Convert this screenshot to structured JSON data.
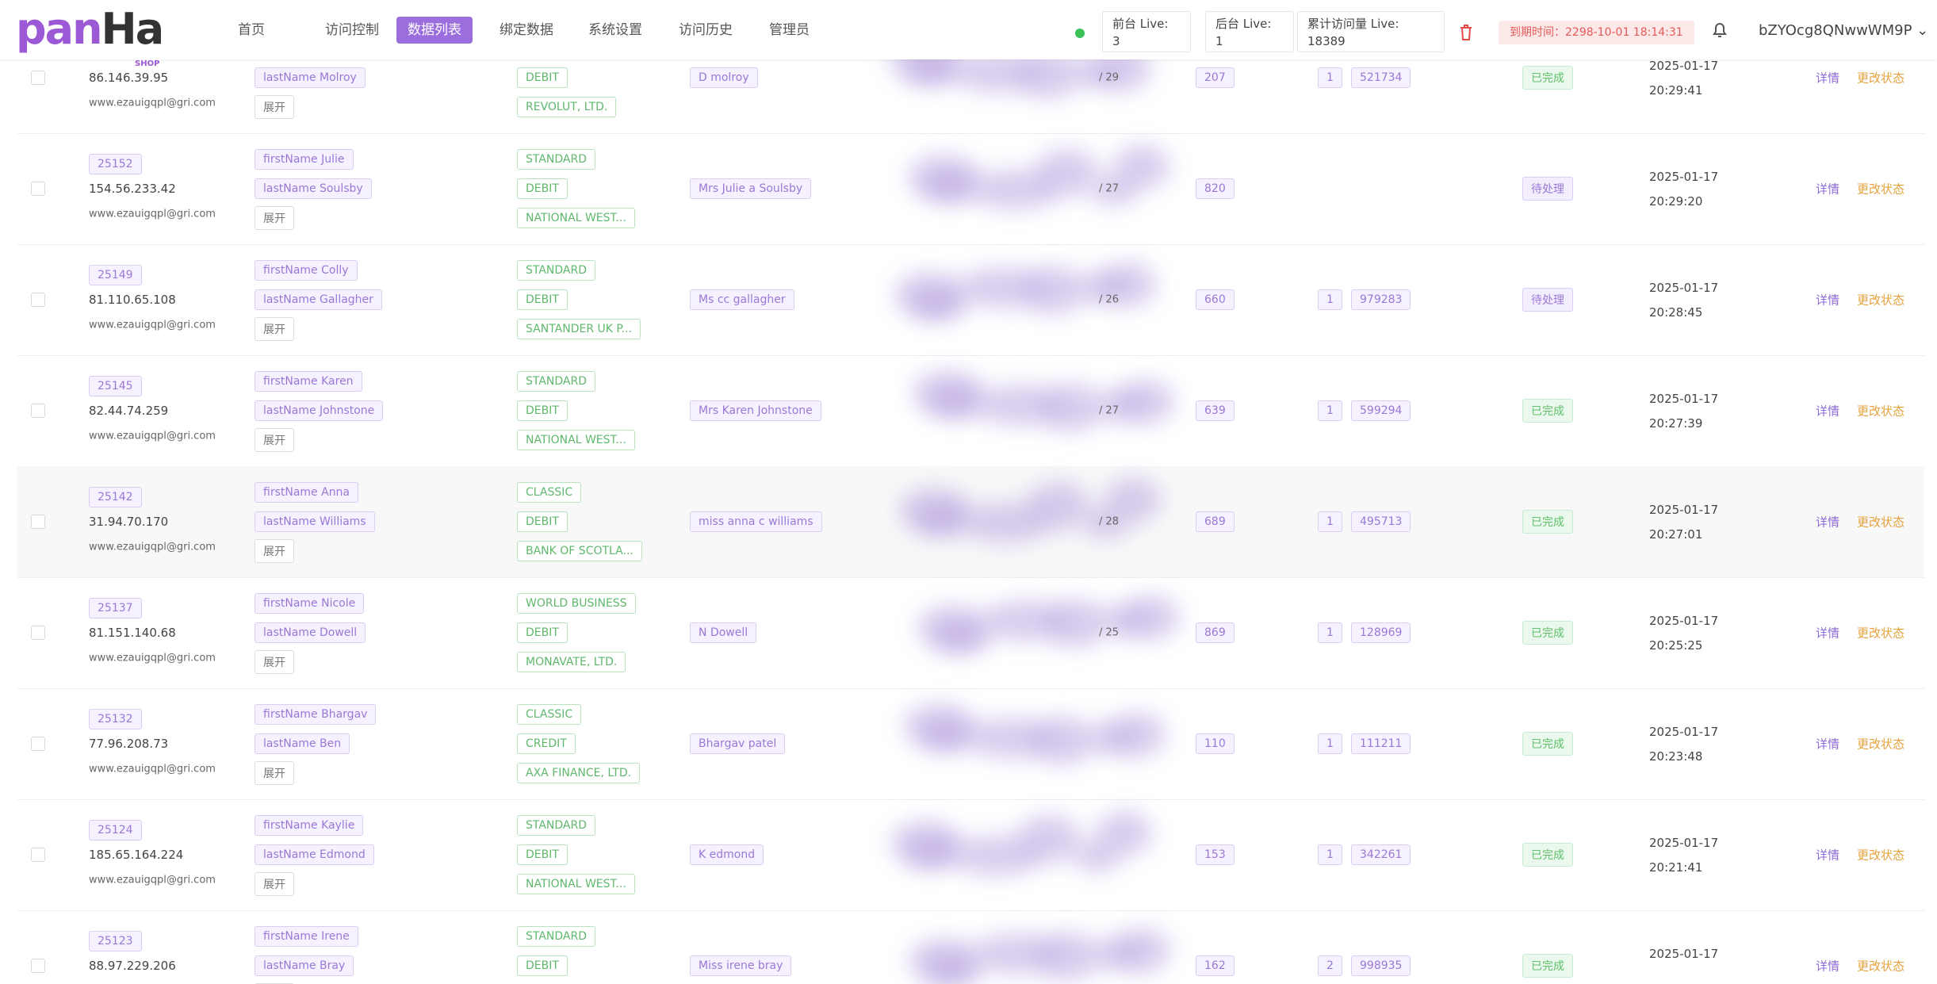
{
  "header": {
    "logo": {
      "main": "pan",
      "accent": "Ha",
      "sub": "SHOP"
    },
    "nav": [
      "首页",
      "访问控制",
      "数据列表",
      "绑定数据",
      "系统设置",
      "访问历史",
      "管理员"
    ],
    "active_nav": 2,
    "stats": [
      {
        "label": "前台 Live:",
        "value": "3"
      },
      {
        "label": "后台 Live:",
        "value": "1"
      },
      {
        "label": "累计访问量 Live:",
        "value": "18389"
      }
    ],
    "expiry": "到期时间：2298-10-01 18:14:31",
    "user": "bZYOcg8QNwwWM9P"
  },
  "table": {
    "labels": {
      "expand": "展开",
      "detail": "详情",
      "change": "更改状态"
    },
    "rows": [
      {
        "ip": "86.146.39.95",
        "email": "www.ezauigqpl@gri.com",
        "last": "lastName Molroy",
        "card_type": "DEBIT",
        "bank": "REVOLUT, LTD.",
        "holder": "D molroy",
        "frac": "/ 29",
        "score": "207",
        "count": "1",
        "code": "521734",
        "status": "已完成",
        "date": "2025-01-17",
        "time": "20:29:41"
      },
      {
        "id": "25152",
        "ip": "154.56.233.42",
        "email": "www.ezauigqpl@gri.com",
        "first": "firstName Julie",
        "last": "lastName Soulsby",
        "level": "STANDARD",
        "card_type": "DEBIT",
        "bank": "NATIONAL WEST...",
        "holder": "Mrs Julie a Soulsby",
        "frac": "/ 27",
        "score": "820",
        "status": "待处理",
        "date": "2025-01-17",
        "time": "20:29:20"
      },
      {
        "id": "25149",
        "ip": "81.110.65.108",
        "email": "www.ezauigqpl@gri.com",
        "first": "firstName Colly",
        "last": "lastName Gallagher",
        "level": "STANDARD",
        "card_type": "DEBIT",
        "bank": "SANTANDER UK P...",
        "holder": "Ms cc gallagher",
        "frac": "/ 26",
        "score": "660",
        "count": "1",
        "code": "979283",
        "status": "待处理",
        "date": "2025-01-17",
        "time": "20:28:45"
      },
      {
        "id": "25145",
        "ip": "82.44.74.259",
        "email": "www.ezauigqpl@gri.com",
        "first": "firstName Karen",
        "last": "lastName Johnstone",
        "level": "STANDARD",
        "card_type": "DEBIT",
        "bank": "NATIONAL WEST...",
        "holder": "Mrs Karen Johnstone",
        "frac": "/ 27",
        "score": "639",
        "count": "1",
        "code": "599294",
        "status": "已完成",
        "date": "2025-01-17",
        "time": "20:27:39"
      },
      {
        "id": "25142",
        "ip": "31.94.70.170",
        "email": "www.ezauigqpl@gri.com",
        "first": "firstName Anna",
        "last": "lastName Williams",
        "level": "CLASSIC",
        "card_type": "DEBIT",
        "bank": "BANK OF SCOTLA...",
        "holder": "miss anna c williams",
        "frac": "/ 28",
        "score": "689",
        "count": "1",
        "code": "495713",
        "status": "已完成",
        "date": "2025-01-17",
        "time": "20:27:01"
      },
      {
        "id": "25137",
        "ip": "81.151.140.68",
        "email": "www.ezauigqpl@gri.com",
        "first": "firstName Nicole",
        "last": "lastName Dowell",
        "level": "WORLD BUSINESS",
        "card_type": "DEBIT",
        "bank": "MONAVATE, LTD.",
        "holder": "N Dowell",
        "frac": "/ 25",
        "score": "869",
        "count": "1",
        "code": "128969",
        "status": "已完成",
        "date": "2025-01-17",
        "time": "20:25:25"
      },
      {
        "id": "25132",
        "ip": "77.96.208.73",
        "email": "www.ezauigqpl@gri.com",
        "first": "firstName Bhargav",
        "last": "lastName Ben",
        "level": "CLASSIC",
        "card_type": "CREDIT",
        "bank": "AXA FINANCE, LTD.",
        "holder": "Bhargav patel",
        "score": "110",
        "count": "1",
        "code": "111211",
        "status": "已完成",
        "date": "2025-01-17",
        "time": "20:23:48"
      },
      {
        "id": "25124",
        "ip": "185.65.164.224",
        "email": "www.ezauigqpl@gri.com",
        "first": "firstName Kaylie",
        "last": "lastName Edmond",
        "level": "STANDARD",
        "card_type": "DEBIT",
        "bank": "NATIONAL WEST...",
        "holder": "K edmond",
        "score": "153",
        "count": "1",
        "code": "342261",
        "status": "已完成",
        "date": "2025-01-17",
        "time": "20:21:41"
      },
      {
        "id": "25123",
        "ip": "88.97.229.206",
        "first": "firstName Irene",
        "last": "lastName Bray",
        "level": "STANDARD",
        "card_type": "DEBIT",
        "holder": "Miss irene bray",
        "score": "162",
        "count": "2",
        "code": "998935",
        "status": "已完成",
        "date": "2025-01-17"
      }
    ]
  }
}
